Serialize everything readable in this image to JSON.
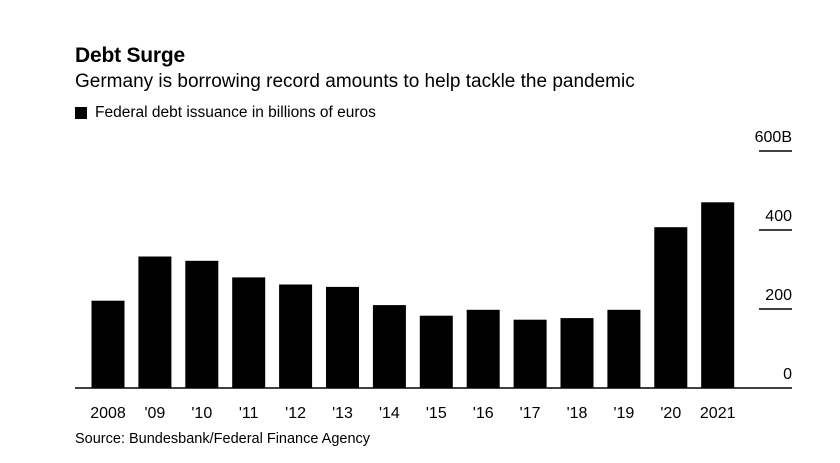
{
  "chart_data": {
    "type": "bar",
    "title": "Debt Surge",
    "subtitle": "Germany is borrowing record amounts to help tackle the pandemic",
    "legend": [
      {
        "name": "Federal debt issuance in billions of euros",
        "color": "#000000"
      }
    ],
    "categories": [
      "2008",
      "'09",
      "'10",
      "'11",
      "'12",
      "'13",
      "'14",
      "'15",
      "'16",
      "'17",
      "'18",
      "'19",
      "'20",
      "2021"
    ],
    "values": [
      221,
      333,
      322,
      280,
      262,
      256,
      210,
      183,
      198,
      173,
      177,
      198,
      407,
      470
    ],
    "ylim": [
      0,
      600
    ],
    "yticks": [
      0,
      200,
      400,
      600
    ],
    "ytick_labels": [
      "0",
      "200",
      "400",
      "600B"
    ],
    "axis_position": "right",
    "bar_color": "#000000",
    "source": "Source: Bundesbank/Federal Finance Agency"
  }
}
